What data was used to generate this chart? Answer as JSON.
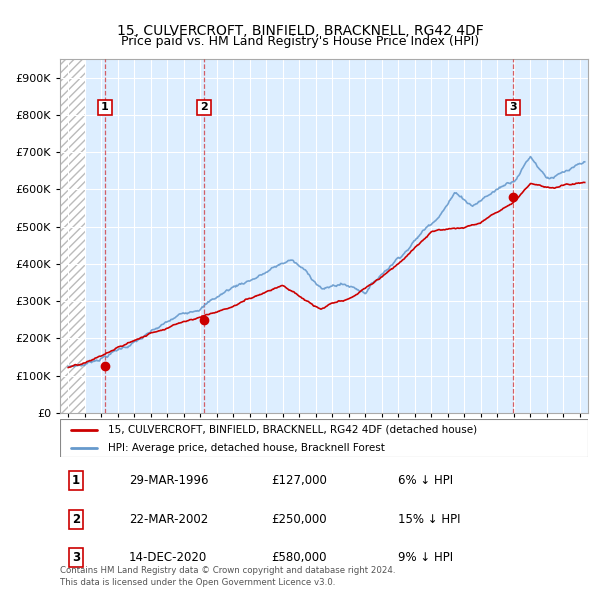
{
  "title": "15, CULVERCROFT, BINFIELD, BRACKNELL, RG42 4DF",
  "subtitle": "Price paid vs. HM Land Registry's House Price Index (HPI)",
  "legend_line1": "15, CULVERCROFT, BINFIELD, BRACKNELL, RG42 4DF (detached house)",
  "legend_line2": "HPI: Average price, detached house, Bracknell Forest",
  "transactions": [
    {
      "number": 1,
      "date": "29-MAR-1996",
      "year": 1996.23,
      "price": 127000,
      "pct": "6%",
      "dir": "↓"
    },
    {
      "number": 2,
      "date": "22-MAR-2002",
      "year": 2002.22,
      "price": 250000,
      "pct": "15%",
      "dir": "↓"
    },
    {
      "number": 3,
      "date": "14-DEC-2020",
      "year": 2020.95,
      "price": 580000,
      "pct": "9%",
      "dir": "↓"
    }
  ],
  "footer_line1": "Contains HM Land Registry data © Crown copyright and database right 2024.",
  "footer_line2": "This data is licensed under the Open Government Licence v3.0.",
  "red_color": "#cc0000",
  "blue_color": "#6699cc",
  "background_color": "#ddeeff",
  "ylim": [
    0,
    950000
  ],
  "xlim_start": 1993.5,
  "xlim_end": 2025.5,
  "hatch_end": 1995.0
}
